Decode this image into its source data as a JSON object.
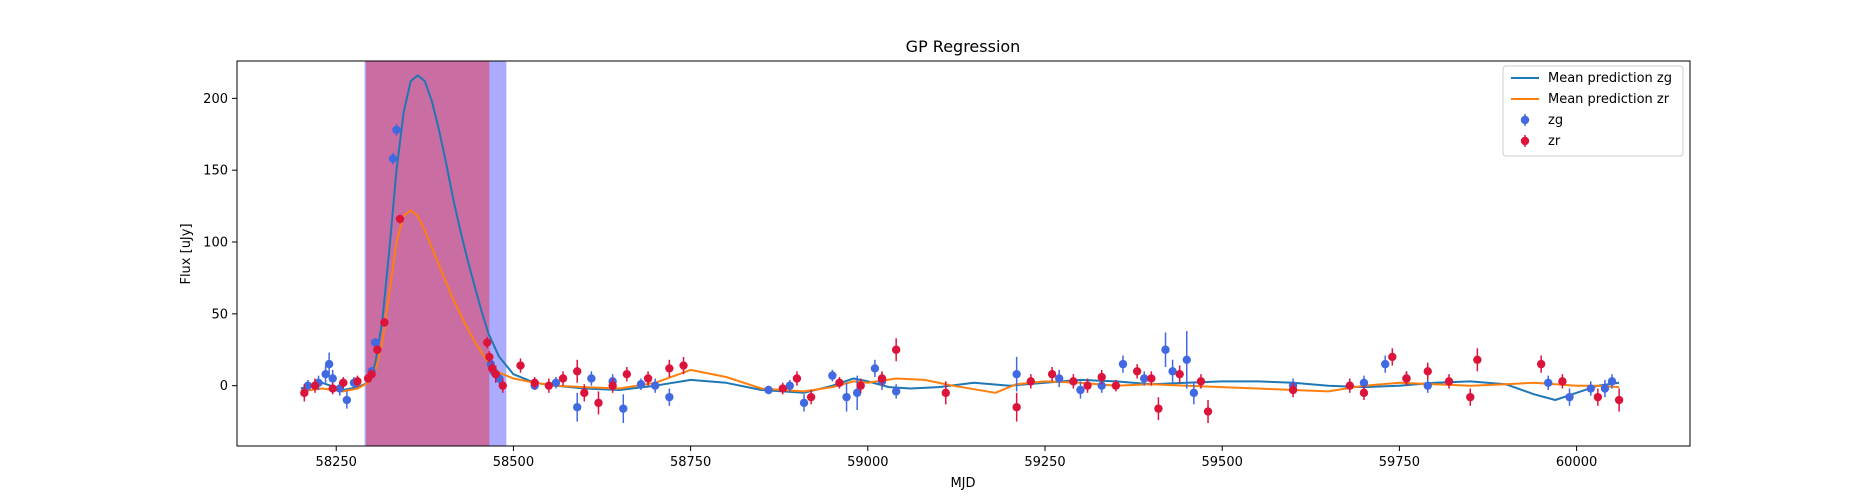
{
  "chart_data": {
    "type": "scatter",
    "title": "GP Regression",
    "xlabel": "MJD",
    "ylabel": "Flux [uJy]",
    "xlim": [
      58110,
      60160
    ],
    "ylim": [
      -42,
      226
    ],
    "xticks": [
      58250,
      58500,
      58750,
      59000,
      59250,
      59500,
      59750,
      60000
    ],
    "yticks": [
      0,
      50,
      100,
      150,
      200
    ],
    "grid": false,
    "legend_position": "top-right",
    "shaded_regions": [
      {
        "x": [
          58290,
          58490
        ],
        "color": "#0000ff",
        "opacity": 0.33
      },
      {
        "x": [
          58292,
          58466
        ],
        "color": "#ff0000",
        "opacity": 0.36
      }
    ],
    "lines": [
      {
        "name": "Mean prediction zg",
        "color": "#1f77b4",
        "x": [
          58200,
          58230,
          58260,
          58280,
          58295,
          58305,
          58315,
          58325,
          58335,
          58345,
          58355,
          58365,
          58375,
          58385,
          58395,
          58405,
          58415,
          58425,
          58435,
          58445,
          58455,
          58465,
          58480,
          58500,
          58530,
          58560,
          58600,
          58650,
          58700,
          58750,
          58800,
          58850,
          58880,
          58910,
          58950,
          58980,
          59000,
          59030,
          59060,
          59100,
          59150,
          59200,
          59250,
          59300,
          59350,
          59400,
          59450,
          59500,
          59550,
          59600,
          59650,
          59700,
          59750,
          59800,
          59850,
          59900,
          59940,
          59970,
          60000,
          60030,
          60060
        ],
        "y": [
          -2,
          2,
          -3,
          -1,
          2,
          15,
          45,
          95,
          150,
          190,
          212,
          216,
          212,
          198,
          178,
          155,
          130,
          108,
          88,
          70,
          52,
          36,
          20,
          8,
          2,
          0,
          -2,
          -3,
          0,
          4,
          2,
          -3,
          -4,
          -5,
          0,
          5,
          3,
          -1,
          -2,
          -1,
          2,
          0,
          2,
          4,
          3,
          1,
          2,
          3,
          3,
          2,
          0,
          -1,
          0,
          2,
          3,
          1,
          -6,
          -10,
          -5,
          0,
          2
        ]
      },
      {
        "name": "Mean prediction zr",
        "color": "#ff7f0e",
        "x": [
          58200,
          58230,
          58260,
          58280,
          58295,
          58305,
          58315,
          58325,
          58335,
          58345,
          58355,
          58365,
          58375,
          58385,
          58395,
          58405,
          58415,
          58425,
          58435,
          58445,
          58455,
          58465,
          58480,
          58500,
          58530,
          58560,
          58600,
          58650,
          58700,
          58750,
          58800,
          58850,
          58880,
          58910,
          58950,
          58980,
          59000,
          59040,
          59080,
          59120,
          59180,
          59210,
          59250,
          59300,
          59350,
          59400,
          59450,
          59500,
          59550,
          59600,
          59650,
          59700,
          59750,
          59800,
          59850,
          59900,
          59940,
          59970,
          60000,
          60030,
          60060
        ],
        "y": [
          -4,
          -2,
          -4,
          -2,
          2,
          10,
          30,
          65,
          100,
          118,
          122,
          118,
          108,
          96,
          84,
          72,
          60,
          50,
          40,
          31,
          23,
          16,
          9,
          5,
          2,
          0,
          -1,
          -2,
          2,
          11,
          6,
          -2,
          -3,
          -4,
          -1,
          3,
          2,
          5,
          4,
          0,
          -5,
          1,
          3,
          2,
          0,
          1,
          0,
          -1,
          -2,
          -3,
          -4,
          0,
          2,
          1,
          0,
          1,
          2,
          1,
          0,
          0,
          -1
        ]
      }
    ],
    "series": [
      {
        "name": "zg",
        "color": "#4169e1",
        "points": [
          [
            58210,
            0,
            4
          ],
          [
            58225,
            2,
            5
          ],
          [
            58235,
            8,
            6
          ],
          [
            58240,
            15,
            8
          ],
          [
            58245,
            5,
            6
          ],
          [
            58255,
            -2,
            5
          ],
          [
            58265,
            -10,
            6
          ],
          [
            58275,
            2,
            4
          ],
          [
            58300,
            10,
            3
          ],
          [
            58305,
            30,
            3
          ],
          [
            58330,
            158,
            4
          ],
          [
            58335,
            178,
            4
          ],
          [
            58468,
            15,
            4
          ],
          [
            58472,
            10,
            4
          ],
          [
            58480,
            5,
            4
          ],
          [
            58530,
            0,
            3
          ],
          [
            58560,
            2,
            4
          ],
          [
            58590,
            -15,
            10
          ],
          [
            58610,
            5,
            5
          ],
          [
            58640,
            3,
            5
          ],
          [
            58655,
            -16,
            10
          ],
          [
            58680,
            1,
            4
          ],
          [
            58700,
            0,
            5
          ],
          [
            58720,
            -8,
            6
          ],
          [
            58860,
            -3,
            3
          ],
          [
            58890,
            0,
            4
          ],
          [
            58910,
            -12,
            6
          ],
          [
            58950,
            7,
            4
          ],
          [
            58970,
            -8,
            10
          ],
          [
            58985,
            -5,
            12
          ],
          [
            59010,
            12,
            6
          ],
          [
            59020,
            3,
            6
          ],
          [
            59040,
            -4,
            5
          ],
          [
            59210,
            8,
            12
          ],
          [
            59270,
            5,
            6
          ],
          [
            59300,
            -3,
            6
          ],
          [
            59330,
            0,
            5
          ],
          [
            59360,
            15,
            6
          ],
          [
            59390,
            5,
            5
          ],
          [
            59420,
            25,
            12
          ],
          [
            59430,
            10,
            8
          ],
          [
            59450,
            18,
            20
          ],
          [
            59460,
            -5,
            8
          ],
          [
            59600,
            0,
            5
          ],
          [
            59700,
            2,
            5
          ],
          [
            59730,
            15,
            6
          ],
          [
            59760,
            5,
            5
          ],
          [
            59790,
            0,
            5
          ],
          [
            59960,
            2,
            5
          ],
          [
            59990,
            -8,
            6
          ],
          [
            60020,
            -2,
            5
          ],
          [
            60040,
            -2,
            6
          ],
          [
            60050,
            3,
            5
          ]
        ]
      },
      {
        "name": "zr",
        "color": "#dc143c",
        "points": [
          [
            58205,
            -5,
            6
          ],
          [
            58220,
            0,
            5
          ],
          [
            58245,
            -2,
            4
          ],
          [
            58260,
            2,
            4
          ],
          [
            58280,
            3,
            4
          ],
          [
            58295,
            5,
            3
          ],
          [
            58300,
            8,
            3
          ],
          [
            58308,
            25,
            3
          ],
          [
            58318,
            44,
            3
          ],
          [
            58340,
            116,
            3
          ],
          [
            58463,
            30,
            4
          ],
          [
            58466,
            20,
            4
          ],
          [
            58470,
            12,
            5
          ],
          [
            58475,
            8,
            6
          ],
          [
            58485,
            0,
            5
          ],
          [
            58510,
            14,
            5
          ],
          [
            58530,
            2,
            4
          ],
          [
            58550,
            0,
            5
          ],
          [
            58570,
            5,
            5
          ],
          [
            58590,
            10,
            8
          ],
          [
            58600,
            -5,
            6
          ],
          [
            58620,
            -12,
            8
          ],
          [
            58640,
            0,
            5
          ],
          [
            58660,
            8,
            5
          ],
          [
            58690,
            5,
            5
          ],
          [
            58720,
            12,
            6
          ],
          [
            58740,
            14,
            6
          ],
          [
            58880,
            -2,
            4
          ],
          [
            58900,
            5,
            5
          ],
          [
            58920,
            -8,
            5
          ],
          [
            58960,
            2,
            4
          ],
          [
            58990,
            0,
            5
          ],
          [
            59020,
            5,
            5
          ],
          [
            59040,
            25,
            8
          ],
          [
            59110,
            -5,
            8
          ],
          [
            59210,
            -15,
            10
          ],
          [
            59230,
            3,
            5
          ],
          [
            59260,
            8,
            5
          ],
          [
            59290,
            3,
            5
          ],
          [
            59310,
            0,
            5
          ],
          [
            59330,
            6,
            5
          ],
          [
            59350,
            0,
            4
          ],
          [
            59380,
            10,
            5
          ],
          [
            59400,
            5,
            5
          ],
          [
            59410,
            -16,
            8
          ],
          [
            59440,
            8,
            6
          ],
          [
            59470,
            3,
            5
          ],
          [
            59480,
            -18,
            8
          ],
          [
            59600,
            -3,
            5
          ],
          [
            59680,
            0,
            5
          ],
          [
            59700,
            -5,
            5
          ],
          [
            59740,
            20,
            6
          ],
          [
            59760,
            5,
            5
          ],
          [
            59790,
            10,
            6
          ],
          [
            59820,
            3,
            5
          ],
          [
            59850,
            -8,
            6
          ],
          [
            59860,
            18,
            8
          ],
          [
            59950,
            15,
            6
          ],
          [
            59980,
            3,
            5
          ],
          [
            60030,
            -8,
            6
          ],
          [
            60060,
            -10,
            8
          ]
        ]
      }
    ]
  }
}
